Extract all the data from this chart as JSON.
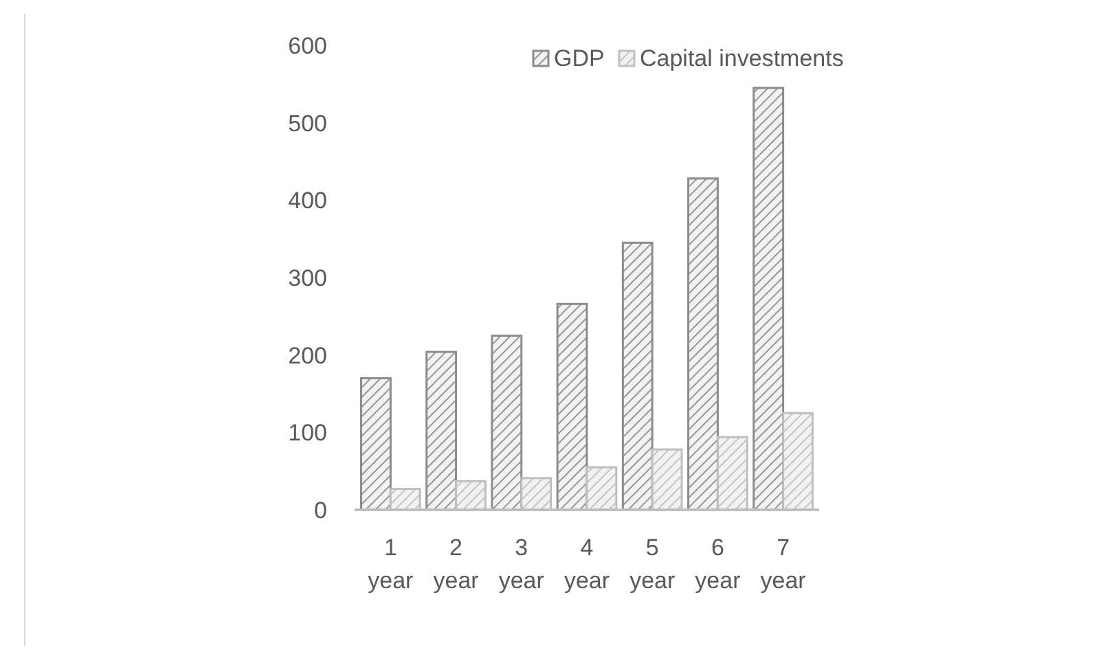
{
  "chart_data": {
    "type": "bar",
    "categories": [
      "1 year",
      "2 year",
      "3 year",
      "4 year",
      "5 year",
      "6 year",
      "7 year"
    ],
    "series": [
      {
        "name": "GDP",
        "color": "#8c8c8c",
        "values": [
          170,
          204,
          225,
          266,
          345,
          428,
          545
        ]
      },
      {
        "name": "Capital investments",
        "color": "#bfbfbf",
        "values": [
          27,
          37,
          41,
          55,
          78,
          94,
          125
        ]
      }
    ],
    "ylim": [
      0,
      600
    ],
    "yticks": [
      0,
      100,
      200,
      300,
      400,
      500,
      600
    ],
    "grid": false,
    "legend": "top"
  }
}
